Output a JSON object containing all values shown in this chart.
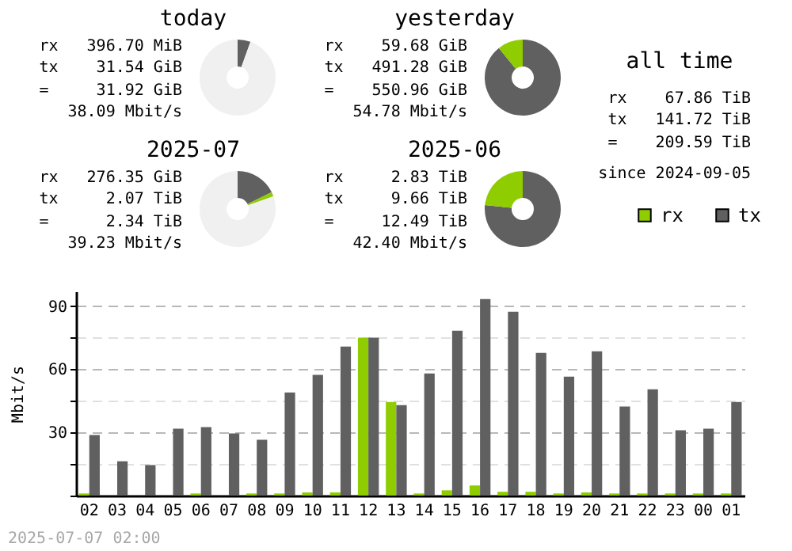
{
  "chart_data": [
    {
      "type": "donut",
      "title": "today",
      "categories": [
        null,
        null,
        null
      ],
      "values": [
        5.5,
        0,
        94.5
      ],
      "colors": [
        "#606060",
        "#8fcc00",
        "#f0f0f0"
      ],
      "annotations": [
        "rx 396.70 MiB",
        "tx 31.54 GiB",
        "= 31.92 GiB",
        "38.09 Mbit/s"
      ]
    },
    {
      "type": "donut",
      "title": "yesterday",
      "categories": [
        null,
        null
      ],
      "values": [
        89.2,
        10.8
      ],
      "colors": [
        "#606060",
        "#8fcc00"
      ],
      "annotations": [
        "rx 59.68 GiB",
        "tx 491.28 GiB",
        "= 550.96 GiB",
        "54.78 Mbit/s"
      ]
    },
    {
      "type": "other",
      "title": "all time",
      "annotations": [
        "rx 67.86 TiB",
        "tx 141.72 TiB",
        "= 209.59 TiB",
        "since 2024-09-05"
      ]
    },
    {
      "type": "donut",
      "title": "2025-07",
      "categories": [
        null,
        null,
        null
      ],
      "values": [
        17.7,
        1.9,
        80.4
      ],
      "colors": [
        "#606060",
        "#8fcc00",
        "#f0f0f0"
      ],
      "annotations": [
        "rx 276.35 GiB",
        "tx 2.07 TiB",
        "= 2.34 TiB",
        "39.23 Mbit/s"
      ]
    },
    {
      "type": "donut",
      "title": "2025-06",
      "categories": [
        null,
        null
      ],
      "values": [
        76.7,
        23.3
      ],
      "colors": [
        "#606060",
        "#8fcc00"
      ],
      "annotations": [
        "rx 2.83 TiB",
        "tx 9.66 TiB",
        "= 12.49 TiB",
        "42.40 Mbit/s"
      ]
    },
    {
      "type": "bar",
      "ylabel": "Mbit/s",
      "categories": [
        "02",
        "03",
        "04",
        "05",
        "06",
        "07",
        "08",
        "09",
        "10",
        "11",
        "12",
        "13",
        "14",
        "15",
        "16",
        "17",
        "18",
        "19",
        "20",
        "21",
        "22",
        "23",
        "00",
        "01"
      ],
      "series": [
        {
          "name": "rx",
          "color": "#8fcc00",
          "values": [
            1,
            0,
            0,
            0,
            1,
            0,
            1,
            1,
            1.5,
            1.5,
            75,
            44.5,
            1,
            2.5,
            4.8,
            1.8,
            1.8,
            1,
            1.5,
            1,
            1,
            1,
            1,
            1
          ]
        },
        {
          "name": "tx",
          "color": "#606060",
          "values": [
            28.8,
            16.3,
            14.5,
            31.8,
            32.5,
            29.5,
            26.5,
            49,
            57.3,
            70.8,
            75,
            43,
            58,
            78.3,
            93.3,
            87.3,
            67.8,
            56.5,
            68.5,
            42.3,
            50.5,
            31,
            31.8,
            44.5
          ]
        }
      ],
      "ylim": [
        0,
        97
      ],
      "yticks": [
        {
          "value": 0,
          "label": null
        },
        {
          "value": 15,
          "label": null
        },
        30,
        {
          "value": 45,
          "label": null
        },
        60,
        {
          "value": 75,
          "label": null
        },
        90
      ],
      "grid": "y",
      "legend": "top right",
      "annotations": [
        "2025-07-07 02:00"
      ]
    }
  ]
}
